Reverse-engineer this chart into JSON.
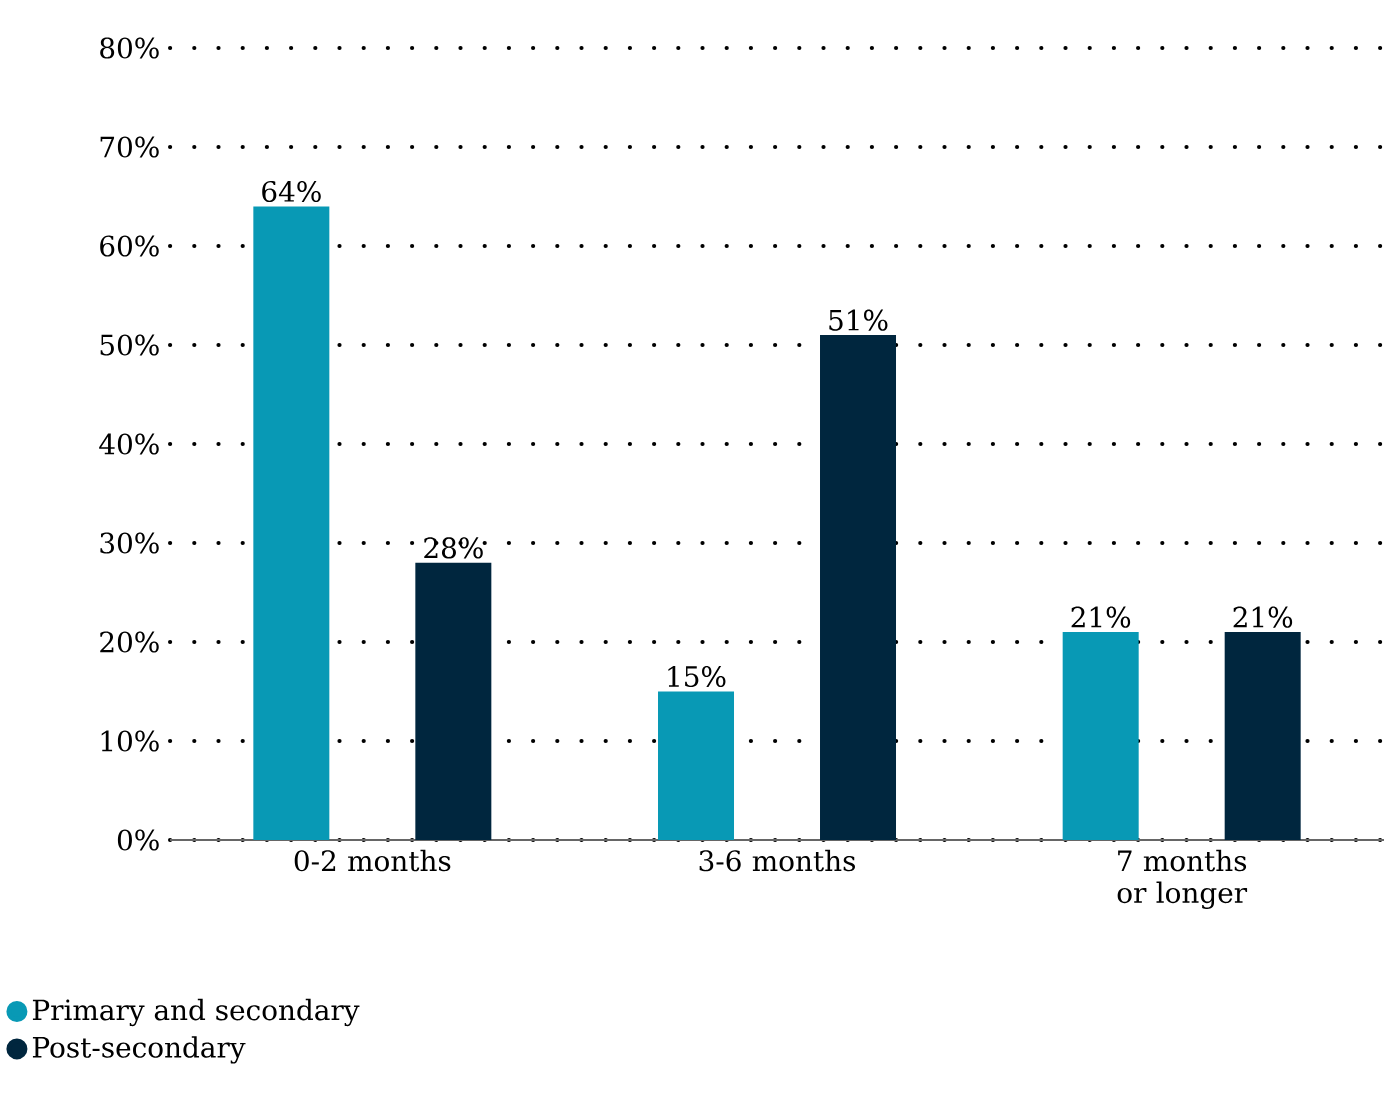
{
  "chart_data": {
    "type": "bar",
    "categories": [
      "0-2 months",
      "3-6 months",
      "7 months or longer"
    ],
    "series": [
      {
        "name": "Primary and secondary",
        "color": "#0899b5",
        "values": [
          64,
          15,
          21
        ],
        "value_labels": [
          "64%",
          "15%",
          "21%"
        ]
      },
      {
        "name": "Post-secondary",
        "color": "#00263e",
        "values": [
          28,
          51,
          21
        ],
        "value_labels": [
          "28%",
          "51%",
          "21%"
        ]
      }
    ],
    "ylim": [
      0,
      80
    ],
    "yticks": [
      {
        "value": 0,
        "label": "0%"
      },
      {
        "value": 10,
        "label": "10%"
      },
      {
        "value": 20,
        "label": "20%"
      },
      {
        "value": 30,
        "label": "30%"
      },
      {
        "value": 40,
        "label": "40%"
      },
      {
        "value": 50,
        "label": "50%"
      },
      {
        "value": 60,
        "label": "60%"
      },
      {
        "value": 70,
        "label": "70%"
      },
      {
        "value": 80,
        "label": "80%"
      }
    ],
    "grid": "y",
    "legend": "bottom left"
  }
}
